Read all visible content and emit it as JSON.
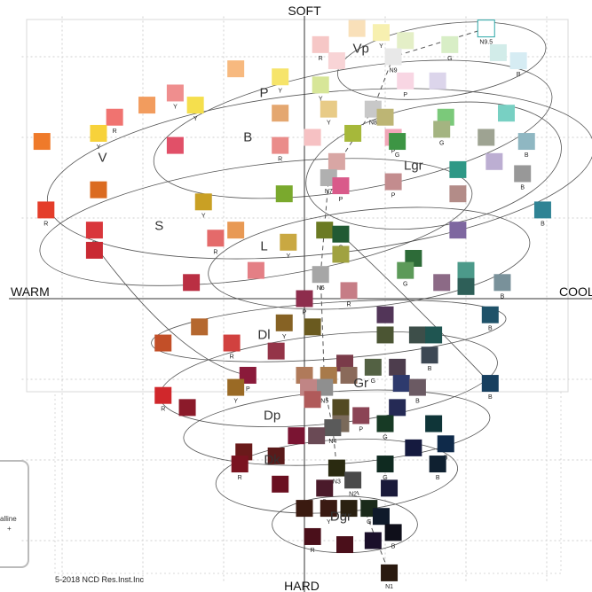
{
  "chart_data": {
    "type": "scatter",
    "title": "",
    "axis_labels": {
      "top": "SOFT",
      "bottom": "HARD",
      "left": "WARM",
      "right": "COOL"
    },
    "xlim": [
      -3,
      3
    ],
    "ylim": [
      -3.5,
      3.5
    ],
    "grid": true,
    "copyright": "5-2018 NCD Res.Inst.Inc",
    "side_text": [
      "alline",
      "+"
    ],
    "tone_labels": [
      {
        "label": "Vp",
        "x": 0.7,
        "y": 3.05
      },
      {
        "label": "P",
        "x": -0.5,
        "y": 2.5
      },
      {
        "label": "B",
        "x": -0.7,
        "y": 1.95
      },
      {
        "label": "V",
        "x": -2.5,
        "y": 1.7
      },
      {
        "label": "Lgr",
        "x": 1.35,
        "y": 1.6
      },
      {
        "label": "S",
        "x": -1.8,
        "y": 0.85
      },
      {
        "label": "L",
        "x": -0.5,
        "y": 0.6
      },
      {
        "label": "Dl",
        "x": -0.5,
        "y": -0.5
      },
      {
        "label": "Gr",
        "x": 0.7,
        "y": -1.1
      },
      {
        "label": "Dp",
        "x": -0.4,
        "y": -1.5
      },
      {
        "label": "Dk",
        "x": -0.4,
        "y": -2.05
      },
      {
        "label": "Dgr",
        "x": 0.45,
        "y": -2.75
      }
    ],
    "points": [
      {
        "x": 2.25,
        "y": 3.35,
        "color": "#ffffff",
        "label": "N9.5"
      },
      {
        "x": 0.65,
        "y": 3.35,
        "color": "#f9e0b9",
        "label": ""
      },
      {
        "x": 0.95,
        "y": 3.3,
        "color": "#f7f0b0",
        "label": "Y"
      },
      {
        "x": 1.25,
        "y": 3.2,
        "color": "#e4efc7",
        "label": ""
      },
      {
        "x": 1.1,
        "y": 3.0,
        "color": "#e8e8e8",
        "label": "N9"
      },
      {
        "x": 1.8,
        "y": 3.15,
        "color": "#d8eec6",
        "label": "G"
      },
      {
        "x": 2.4,
        "y": 3.05,
        "color": "#d2ece9",
        "label": ""
      },
      {
        "x": 2.65,
        "y": 2.95,
        "color": "#d6ecf3",
        "label": "B"
      },
      {
        "x": 1.25,
        "y": 2.7,
        "color": "#f8d6e3",
        "label": "P"
      },
      {
        "x": 1.65,
        "y": 2.7,
        "color": "#dcd5eb",
        "label": ""
      },
      {
        "x": 0.2,
        "y": 3.15,
        "color": "#f6c7c6",
        "label": "R"
      },
      {
        "x": 0.4,
        "y": 2.95,
        "color": "#f8d4d6",
        "label": ""
      },
      {
        "x": -0.85,
        "y": 2.85,
        "color": "#f7b97f",
        "label": ""
      },
      {
        "x": -0.3,
        "y": 2.75,
        "color": "#f6e46a",
        "label": "Y"
      },
      {
        "x": 0.2,
        "y": 2.65,
        "color": "#d7e698",
        "label": "Y"
      },
      {
        "x": -1.6,
        "y": 2.55,
        "color": "#ef8e8e",
        "label": "Y"
      },
      {
        "x": -1.95,
        "y": 2.4,
        "color": "#f29c5e",
        "label": ""
      },
      {
        "x": -1.35,
        "y": 2.4,
        "color": "#f5df4d",
        "label": "Y"
      },
      {
        "x": -2.35,
        "y": 2.25,
        "color": "#f07370",
        "label": "R"
      },
      {
        "x": -2.55,
        "y": 2.05,
        "color": "#f7d23a",
        "label": "Y"
      },
      {
        "x": -0.3,
        "y": 2.3,
        "color": "#e4a770",
        "label": ""
      },
      {
        "x": 0.3,
        "y": 2.35,
        "color": "#e8cb87",
        "label": "Y"
      },
      {
        "x": 0.85,
        "y": 2.35,
        "color": "#c8c8c8",
        "label": "N8"
      },
      {
        "x": 1.0,
        "y": 2.25,
        "color": "#bdb574",
        "label": ""
      },
      {
        "x": 1.75,
        "y": 2.25,
        "color": "#7bc97a",
        "label": ""
      },
      {
        "x": 2.5,
        "y": 2.3,
        "color": "#78d0c3",
        "label": ""
      },
      {
        "x": 1.7,
        "y": 2.1,
        "color": "#a4b481",
        "label": "G"
      },
      {
        "x": 2.25,
        "y": 2.0,
        "color": "#9ea392",
        "label": ""
      },
      {
        "x": 2.75,
        "y": 1.95,
        "color": "#8fb7c2",
        "label": "B"
      },
      {
        "x": 0.1,
        "y": 2.0,
        "color": "#f6c1c3",
        "label": ""
      },
      {
        "x": 0.6,
        "y": 2.05,
        "color": "#a6b83a",
        "label": ""
      },
      {
        "x": 1.1,
        "y": 2.0,
        "color": "#f2a6b8",
        "label": "P"
      },
      {
        "x": 1.15,
        "y": 1.95,
        "color": "#3d9544",
        "label": "G"
      },
      {
        "x": -1.6,
        "y": 1.9,
        "color": "#e15068",
        "label": ""
      },
      {
        "x": -0.3,
        "y": 1.9,
        "color": "#ea8c8a",
        "label": "R"
      },
      {
        "x": -3.25,
        "y": 1.95,
        "color": "#ef7a2a",
        "label": ""
      },
      {
        "x": 0.4,
        "y": 1.7,
        "color": "#d8a6a4",
        "label": ""
      },
      {
        "x": 1.9,
        "y": 1.6,
        "color": "#2e9886",
        "label": ""
      },
      {
        "x": 2.35,
        "y": 1.7,
        "color": "#bcaed2",
        "label": ""
      },
      {
        "x": 2.7,
        "y": 1.55,
        "color": "#989898",
        "label": "B"
      },
      {
        "x": 0.3,
        "y": 1.5,
        "color": "#b0b0b0",
        "label": "N7"
      },
      {
        "x": 0.45,
        "y": 1.4,
        "color": "#d95a8a",
        "label": "P"
      },
      {
        "x": 1.1,
        "y": 1.45,
        "color": "#c38c8e",
        "label": "P"
      },
      {
        "x": 1.9,
        "y": 1.3,
        "color": "#b38c88",
        "label": ""
      },
      {
        "x": -2.55,
        "y": 1.35,
        "color": "#db6b21",
        "label": ""
      },
      {
        "x": -1.25,
        "y": 1.2,
        "color": "#c9a024",
        "label": "Y"
      },
      {
        "x": -0.25,
        "y": 1.3,
        "color": "#7aa92d",
        "label": ""
      },
      {
        "x": 2.95,
        "y": 1.1,
        "color": "#2f8394",
        "label": "B"
      },
      {
        "x": -3.2,
        "y": 1.1,
        "color": "#e43d2a",
        "label": "R"
      },
      {
        "x": -2.6,
        "y": 0.85,
        "color": "#d9363b",
        "label": "R"
      },
      {
        "x": -0.85,
        "y": 0.85,
        "color": "#e89954",
        "label": ""
      },
      {
        "x": -1.1,
        "y": 0.75,
        "color": "#e46a6a",
        "label": "R"
      },
      {
        "x": -0.2,
        "y": 0.7,
        "color": "#c9a842",
        "label": "Y"
      },
      {
        "x": 0.25,
        "y": 0.85,
        "color": "#6b7a23",
        "label": ""
      },
      {
        "x": 0.45,
        "y": 0.8,
        "color": "#215a33",
        "label": "G"
      },
      {
        "x": 1.9,
        "y": 0.85,
        "color": "#7e67a0",
        "label": ""
      },
      {
        "x": -2.6,
        "y": 0.6,
        "color": "#c92a33",
        "label": ""
      },
      {
        "x": 0.45,
        "y": 0.55,
        "color": "#a0a240",
        "label": ""
      },
      {
        "x": 1.35,
        "y": 0.5,
        "color": "#2d6b38",
        "label": ""
      },
      {
        "x": 1.25,
        "y": 0.35,
        "color": "#5c9a59",
        "label": "G"
      },
      {
        "x": 2.0,
        "y": 0.35,
        "color": "#4c9a8a",
        "label": ""
      },
      {
        "x": -0.6,
        "y": 0.35,
        "color": "#e47f85",
        "label": ""
      },
      {
        "x": 0.2,
        "y": 0.3,
        "color": "#a6a6a6",
        "label": "N6"
      },
      {
        "x": 1.7,
        "y": 0.2,
        "color": "#8c6a86",
        "label": ""
      },
      {
        "x": 2.0,
        "y": 0.15,
        "color": "#2e5f58",
        "label": ""
      },
      {
        "x": 2.45,
        "y": 0.2,
        "color": "#79919a",
        "label": "B"
      },
      {
        "x": -1.4,
        "y": 0.2,
        "color": "#ba2f43",
        "label": ""
      },
      {
        "x": 0.55,
        "y": 0.1,
        "color": "#c67d86",
        "label": "R"
      },
      {
        "x": 0.0,
        "y": 0.0,
        "color": "#8e2d4d",
        "label": "P"
      },
      {
        "x": 1.0,
        "y": -0.2,
        "color": "#523558",
        "label": ""
      },
      {
        "x": 2.3,
        "y": -0.2,
        "color": "#1f5269",
        "label": "B"
      },
      {
        "x": -1.3,
        "y": -0.35,
        "color": "#b5682f",
        "label": ""
      },
      {
        "x": -0.25,
        "y": -0.3,
        "color": "#866224",
        "label": "Y"
      },
      {
        "x": 0.1,
        "y": -0.35,
        "color": "#6a5a1f",
        "label": ""
      },
      {
        "x": 1.0,
        "y": -0.45,
        "color": "#4b5533",
        "label": ""
      },
      {
        "x": 1.4,
        "y": -0.45,
        "color": "#3d4e49",
        "label": ""
      },
      {
        "x": 1.6,
        "y": -0.45,
        "color": "#1f5551",
        "label": ""
      },
      {
        "x": -1.75,
        "y": -0.55,
        "color": "#c24f28",
        "label": ""
      },
      {
        "x": -0.9,
        "y": -0.55,
        "color": "#d1413f",
        "label": "R"
      },
      {
        "x": -0.35,
        "y": -0.65,
        "color": "#943448",
        "label": ""
      },
      {
        "x": 0.5,
        "y": -0.8,
        "color": "#7a3b49",
        "label": "R"
      },
      {
        "x": 0.85,
        "y": -0.85,
        "color": "#536143",
        "label": "G"
      },
      {
        "x": 1.15,
        "y": -0.85,
        "color": "#4d3d4d",
        "label": ""
      },
      {
        "x": 1.55,
        "y": -0.7,
        "color": "#3d4854",
        "label": "B"
      },
      {
        "x": 0.0,
        "y": -0.95,
        "color": "#b07a5a",
        "label": ""
      },
      {
        "x": 0.3,
        "y": -0.95,
        "color": "#a87a4a",
        "label": "Y"
      },
      {
        "x": 0.55,
        "y": -0.95,
        "color": "#8a6a5a",
        "label": ""
      },
      {
        "x": -0.7,
        "y": -0.95,
        "color": "#8a1a3a",
        "label": "P"
      },
      {
        "x": 0.25,
        "y": -1.1,
        "color": "#8f8f8f",
        "label": "N5"
      },
      {
        "x": 0.05,
        "y": -1.1,
        "color": "#c08585",
        "label": ""
      },
      {
        "x": 1.2,
        "y": -1.05,
        "color": "#2e3a6d",
        "label": ""
      },
      {
        "x": 1.4,
        "y": -1.1,
        "color": "#6b5a63",
        "label": "B"
      },
      {
        "x": -0.85,
        "y": -1.1,
        "color": "#9a6a25",
        "label": "Y"
      },
      {
        "x": 2.3,
        "y": -1.05,
        "color": "#173f5f",
        "label": "B"
      },
      {
        "x": -1.75,
        "y": -1.2,
        "color": "#d0272b",
        "label": "R"
      },
      {
        "x": -1.45,
        "y": -1.35,
        "color": "#8b1a2a",
        "label": ""
      },
      {
        "x": 0.1,
        "y": -1.25,
        "color": "#b05a5a",
        "label": ""
      },
      {
        "x": 0.45,
        "y": -1.35,
        "color": "#534a22",
        "label": "Y"
      },
      {
        "x": 0.45,
        "y": -1.55,
        "color": "#7a6a5a",
        "label": ""
      },
      {
        "x": 0.7,
        "y": -1.45,
        "color": "#8b4455",
        "label": "P"
      },
      {
        "x": 1.15,
        "y": -1.35,
        "color": "#252a55",
        "label": ""
      },
      {
        "x": 1.0,
        "y": -1.55,
        "color": "#173a25",
        "label": "G"
      },
      {
        "x": 1.6,
        "y": -1.55,
        "color": "#0f3538",
        "label": ""
      },
      {
        "x": 0.35,
        "y": -1.6,
        "color": "#5a5a5a",
        "label": "N4"
      },
      {
        "x": 0.15,
        "y": -1.7,
        "color": "#6a4a55",
        "label": ""
      },
      {
        "x": 1.75,
        "y": -1.8,
        "color": "#0f2a4a",
        "label": "B"
      },
      {
        "x": -0.1,
        "y": -1.7,
        "color": "#7a1432",
        "label": ""
      },
      {
        "x": 1.35,
        "y": -1.85,
        "color": "#151a3f",
        "label": ""
      },
      {
        "x": -0.75,
        "y": -1.9,
        "color": "#6a1a1a",
        "label": ""
      },
      {
        "x": -0.35,
        "y": -1.95,
        "color": "#5a1a1a",
        "label": ""
      },
      {
        "x": -0.8,
        "y": -2.05,
        "color": "#7a1320",
        "label": "R"
      },
      {
        "x": 0.4,
        "y": -2.1,
        "color": "#2a2a10",
        "label": "N3"
      },
      {
        "x": 1.0,
        "y": -2.05,
        "color": "#0f2a20",
        "label": "G"
      },
      {
        "x": 1.65,
        "y": -2.05,
        "color": "#0f2030",
        "label": "B"
      },
      {
        "x": -0.3,
        "y": -2.3,
        "color": "#6a0f20",
        "label": ""
      },
      {
        "x": 0.6,
        "y": -2.25,
        "color": "#4a4a4a",
        "label": "N2"
      },
      {
        "x": 1.05,
        "y": -2.35,
        "color": "#1a1a3a",
        "label": ""
      },
      {
        "x": 0.25,
        "y": -2.35,
        "color": "#4a1a2a",
        "label": "P"
      },
      {
        "x": 0.0,
        "y": -2.6,
        "color": "#3a1a10",
        "label": ""
      },
      {
        "x": 0.3,
        "y": -2.6,
        "color": "#3a1a12",
        "label": "Y"
      },
      {
        "x": 0.55,
        "y": -2.6,
        "color": "#2a2010",
        "label": ""
      },
      {
        "x": 0.8,
        "y": -2.6,
        "color": "#1a2a1a",
        "label": "G"
      },
      {
        "x": 0.95,
        "y": -2.7,
        "color": "#0f1a2a",
        "label": ""
      },
      {
        "x": 0.1,
        "y": -2.95,
        "color": "#4a0f1a",
        "label": "R"
      },
      {
        "x": 0.5,
        "y": -3.05,
        "color": "#4a0f1a",
        "label": ""
      },
      {
        "x": 0.85,
        "y": -3.0,
        "color": "#1a0f2a",
        "label": ""
      },
      {
        "x": 1.1,
        "y": -2.9,
        "color": "#0f0f1a",
        "label": "B"
      },
      {
        "x": 1.05,
        "y": -3.4,
        "color": "#2a1a10",
        "label": "N1"
      }
    ],
    "neutral_axis": [
      {
        "x": 2.25,
        "y": 3.35
      },
      {
        "x": 1.1,
        "y": 3.0
      },
      {
        "x": 0.85,
        "y": 2.35
      },
      {
        "x": 0.3,
        "y": 1.5
      },
      {
        "x": 0.2,
        "y": 0.3
      },
      {
        "x": 0.25,
        "y": -1.1
      },
      {
        "x": 0.35,
        "y": -1.6
      },
      {
        "x": 0.4,
        "y": -2.1
      },
      {
        "x": 0.6,
        "y": -2.25
      },
      {
        "x": 1.05,
        "y": -3.4
      }
    ]
  }
}
